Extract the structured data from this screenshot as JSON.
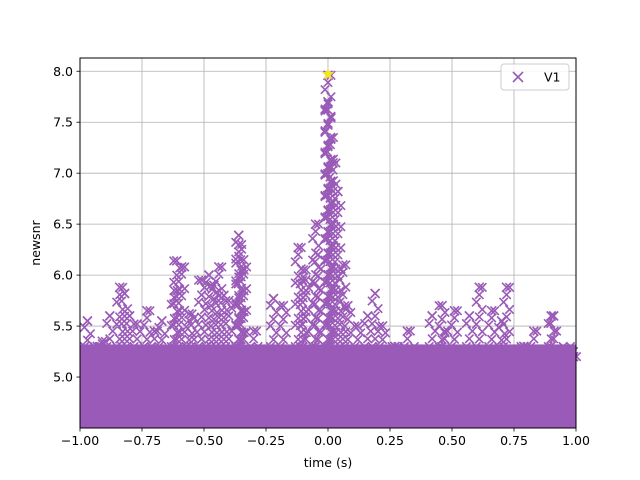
{
  "chart_data": {
    "type": "scatter",
    "xlabel": "time (s)",
    "ylabel": "newsnr",
    "xlim": [
      -1.0,
      1.0
    ],
    "ylim": [
      4.5,
      8.13
    ],
    "grid": true,
    "legend": {
      "placement": "upper-right",
      "entries": [
        "V1"
      ]
    },
    "x_ticks": [
      "−1.00",
      "−0.75",
      "−0.50",
      "−0.25",
      "0.00",
      "0.25",
      "0.50",
      "0.75",
      "1.00"
    ],
    "x_tick_values": [
      -1.0,
      -0.75,
      -0.5,
      -0.25,
      0.0,
      0.25,
      0.5,
      0.75,
      1.0
    ],
    "y_ticks": [
      "5.0",
      "5.5",
      "6.0",
      "6.5",
      "7.0",
      "7.5",
      "8.0"
    ],
    "y_tick_values": [
      5.0,
      5.5,
      6.0,
      6.5,
      7.0,
      7.5,
      8.0
    ],
    "series": [
      {
        "name": "V1",
        "marker": "x",
        "color": "#9a5ab8",
        "x": [
          -0.97,
          -0.93,
          -0.91,
          -0.88,
          -0.84,
          -0.82,
          -0.8,
          -0.77,
          -0.73,
          -0.7,
          -0.67,
          -0.62,
          -0.61,
          -0.59,
          -0.56,
          -0.54,
          -0.51,
          -0.48,
          -0.46,
          -0.44,
          -0.42,
          -0.4,
          -0.36,
          -0.36,
          -0.35,
          -0.34,
          -0.3,
          -0.27,
          -0.22,
          -0.18,
          -0.12,
          -0.1,
          -0.09,
          -0.05,
          -0.04,
          0.0,
          0.0,
          0.0,
          0.01,
          0.02,
          0.04,
          0.06,
          0.08,
          0.12,
          0.16,
          0.19,
          0.22,
          0.27,
          0.32,
          0.36,
          0.42,
          0.46,
          0.47,
          0.51,
          0.57,
          0.61,
          0.66,
          0.7,
          0.72,
          0.79,
          0.83,
          0.9,
          0.91,
          0.96,
          0.99
        ],
        "y": [
          5.55,
          5.3,
          5.35,
          5.6,
          5.88,
          5.82,
          5.6,
          5.52,
          5.65,
          5.45,
          5.55,
          5.85,
          6.14,
          6.08,
          5.62,
          5.58,
          5.95,
          6.0,
          5.9,
          6.08,
          5.8,
          5.75,
          6.39,
          6.3,
          6.05,
          6.15,
          5.45,
          5.25,
          5.77,
          5.7,
          6.27,
          6.05,
          5.95,
          6.5,
          6.2,
          7.96,
          7.7,
          7.62,
          7.35,
          7.1,
          6.82,
          6.1,
          5.7,
          5.5,
          5.6,
          5.82,
          5.5,
          5.3,
          5.45,
          5.25,
          5.6,
          5.7,
          5.45,
          5.65,
          5.6,
          5.88,
          5.65,
          5.55,
          5.88,
          5.3,
          5.45,
          5.6,
          5.6,
          5.25,
          5.2
        ]
      },
      {
        "name": "",
        "marker": "star",
        "color": "#f2e528",
        "x": [
          0.0
        ],
        "y": [
          7.97
        ]
      }
    ]
  }
}
